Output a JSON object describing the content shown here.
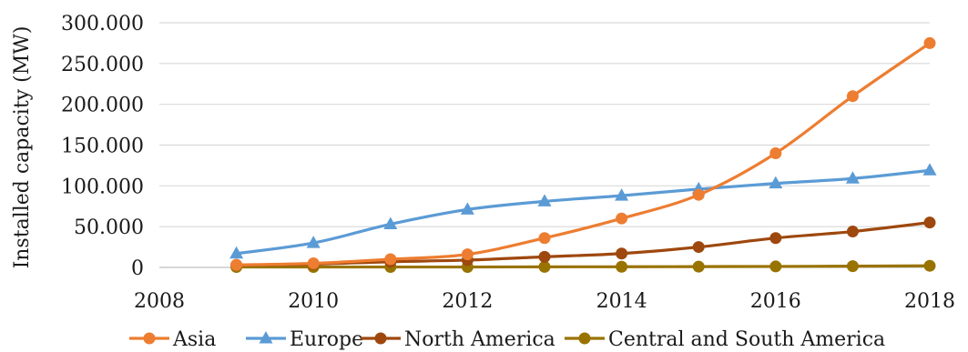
{
  "chart_data": {
    "type": "line",
    "title": "",
    "xlabel": "",
    "ylabel": "Installed capacity (MW)",
    "xlim": [
      2008,
      2018
    ],
    "ylim": [
      0,
      300000
    ],
    "x_ticks": [
      2008,
      2010,
      2012,
      2014,
      2016,
      2018
    ],
    "x_tick_labels": [
      "2008",
      "2010",
      "2012",
      "2014",
      "2016",
      "2018"
    ],
    "y_ticks": [
      0,
      50000,
      100000,
      150000,
      200000,
      250000,
      300000
    ],
    "y_tick_labels": [
      "0",
      "50.000",
      "100.000",
      "150.000",
      "200.000",
      "250.000",
      "300.000"
    ],
    "grid": "horizontal",
    "legend_position": "bottom",
    "x": [
      2009,
      2010,
      2011,
      2012,
      2013,
      2014,
      2015,
      2016,
      2017,
      2018
    ],
    "series": [
      {
        "name": "Asia",
        "color": "#ED7D31",
        "marker": "circle",
        "values": [
          3000,
          5000,
          10000,
          16000,
          36000,
          60000,
          89000,
          140000,
          210000,
          275000
        ]
      },
      {
        "name": "Europe",
        "color": "#5B9BD5",
        "marker": "triangle",
        "values": [
          17000,
          30000,
          53000,
          71000,
          81000,
          88000,
          96000,
          103000,
          109000,
          119000
        ]
      },
      {
        "name": "North America",
        "color": "#9E480E",
        "marker": "circle",
        "values": [
          3000,
          4000,
          7000,
          9000,
          13000,
          17000,
          25000,
          36000,
          44000,
          55000
        ]
      },
      {
        "name": "Central and South America",
        "color": "#997300",
        "marker": "circle",
        "values": [
          500,
          500,
          500,
          500,
          700,
          800,
          1000,
          1200,
          1500,
          2000
        ]
      }
    ]
  }
}
